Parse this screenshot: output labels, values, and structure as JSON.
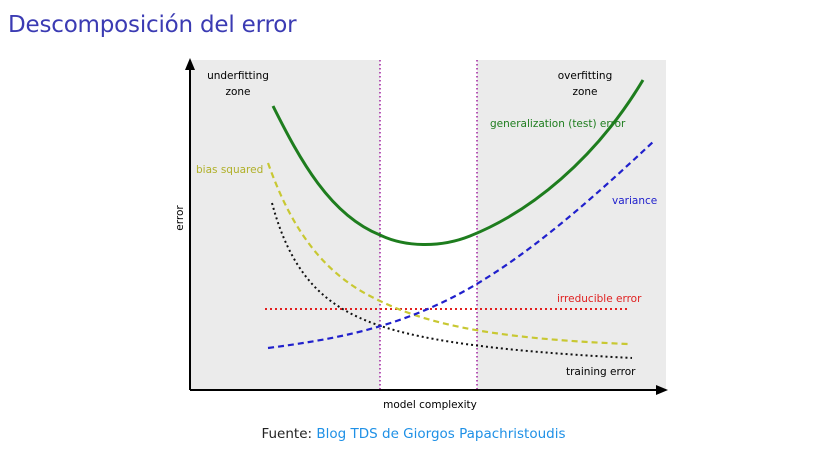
{
  "slide": {
    "title": "Descomposición del error"
  },
  "figure": {
    "axis_x_label": "model complexity",
    "axis_y_label": "error",
    "zone_left": [
      "underfitting",
      "zone"
    ],
    "zone_right": [
      "overfitting",
      "zone"
    ],
    "labels": {
      "generalization": "generalization (test) error",
      "variance": "variance",
      "bias": "bias squared",
      "irreducible": "irreducible error",
      "training": "training error"
    },
    "colors": {
      "generalization": "#1e7d1e",
      "variance": "#2020cc",
      "bias": "#c8c832",
      "irreducible": "#e02020",
      "training": "#111111",
      "zone_lines": "#a020a0",
      "zone_fill": "#ebebeb"
    }
  },
  "caption": {
    "prefix": "Fuente:",
    "link_text": "Blog TDS de Giorgos Papachristoudis"
  }
}
